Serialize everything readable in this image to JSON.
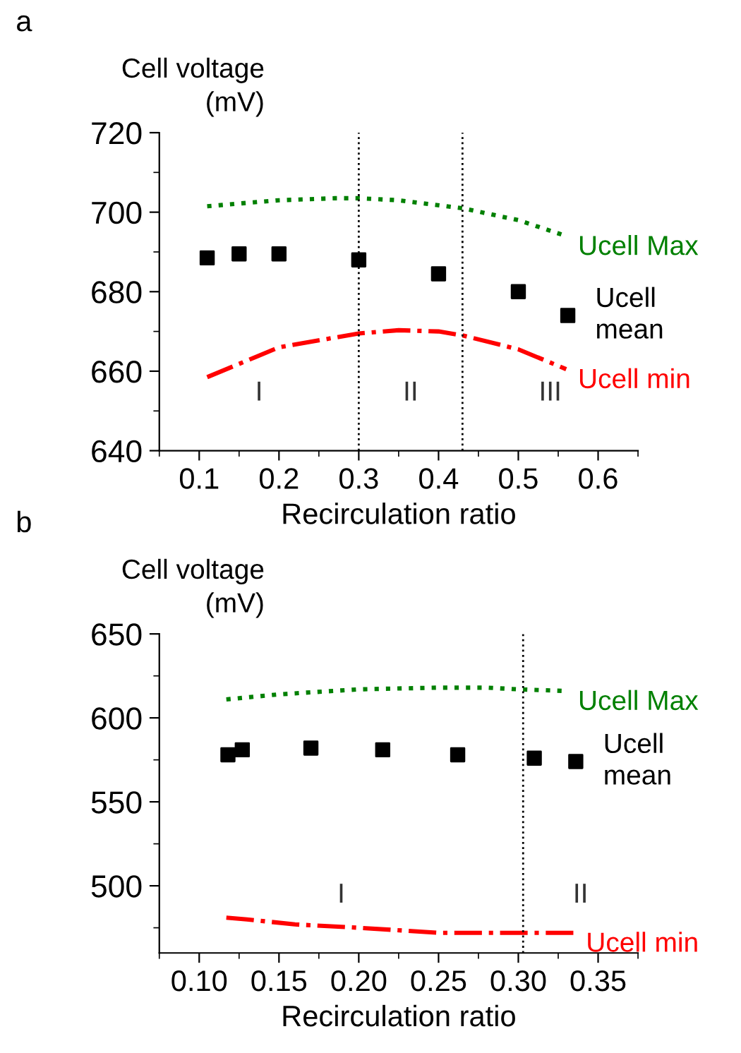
{
  "chart_data": [
    {
      "type": "line",
      "xlabel": "Recirculation ratio",
      "ylabel": "Cell voltage\n(mV)",
      "xlim": [
        0.05,
        0.65
      ],
      "xticks": [
        0.1,
        0.2,
        0.3,
        0.4,
        0.5,
        0.6
      ],
      "ylim": [
        640,
        720
      ],
      "yticks": [
        640,
        660,
        680,
        700,
        720
      ],
      "grid": false,
      "legend": false,
      "series": [
        {
          "name": "Ucell Max",
          "type": "line",
          "color": "#008000",
          "line_style": "dotted",
          "x": [
            0.11,
            0.2,
            0.27,
            0.3,
            0.35,
            0.43,
            0.5,
            0.56
          ],
          "values": [
            701.5,
            703,
            703.5,
            703.5,
            703,
            701,
            698,
            694
          ]
        },
        {
          "name": "Ucell mean",
          "type": "scatter",
          "color": "#000000",
          "marker": "square",
          "x": [
            0.11,
            0.15,
            0.2,
            0.3,
            0.4,
            0.5,
            0.562
          ],
          "values": [
            688.5,
            689.5,
            689.5,
            688,
            684.5,
            680,
            674
          ]
        },
        {
          "name": "Ucell min",
          "type": "line",
          "color": "#ff0000",
          "line_style": "dashdot",
          "x": [
            0.11,
            0.2,
            0.3,
            0.35,
            0.4,
            0.43,
            0.5,
            0.56
          ],
          "values": [
            658.5,
            666,
            669.5,
            670.3,
            670,
            669,
            665.5,
            660.5
          ]
        }
      ],
      "ref_lines": [
        {
          "axis": "x",
          "value": 0.3,
          "color": "#000000",
          "line_style": "dotted"
        },
        {
          "axis": "x",
          "value": 0.43,
          "color": "#000000",
          "line_style": "dotted"
        }
      ],
      "annotations": [
        "a",
        "I",
        "II",
        "III"
      ]
    },
    {
      "type": "line",
      "xlabel": "Recirculation ratio",
      "ylabel": "Cell voltage\n(mV)",
      "xlim": [
        0.075,
        0.375
      ],
      "xticks": [
        {
          "value": 0.1,
          "label": "0.10"
        },
        {
          "value": 0.15,
          "label": "0.15"
        },
        {
          "value": 0.2,
          "label": "0.20"
        },
        {
          "value": 0.25,
          "label": "0.25"
        },
        {
          "value": 0.3,
          "label": "0.30"
        },
        {
          "value": 0.35,
          "label": "0.35"
        }
      ],
      "ylim": [
        460,
        650
      ],
      "yticks": [
        500,
        550,
        600,
        650
      ],
      "grid": false,
      "legend": false,
      "series": [
        {
          "name": "Ucell Max",
          "type": "line",
          "color": "#008000",
          "line_style": "dotted",
          "x": [
            0.117,
            0.15,
            0.2,
            0.25,
            0.28,
            0.3,
            0.33
          ],
          "values": [
            611,
            614,
            617,
            618,
            618,
            617,
            616
          ]
        },
        {
          "name": "Ucell mean",
          "type": "scatter",
          "color": "#000000",
          "marker": "square",
          "x": [
            0.118,
            0.127,
            0.17,
            0.215,
            0.262,
            0.31,
            0.336
          ],
          "values": [
            578,
            581,
            582,
            581,
            578,
            576,
            574
          ]
        },
        {
          "name": "Ucell min",
          "type": "line",
          "color": "#ff0000",
          "line_style": "dashdot",
          "x": [
            0.117,
            0.13,
            0.16,
            0.2,
            0.25,
            0.3,
            0.335
          ],
          "values": [
            481,
            480,
            477,
            475,
            472,
            472,
            472
          ]
        }
      ],
      "ref_lines": [
        {
          "axis": "x",
          "value": 0.303,
          "color": "#000000",
          "line_style": "dotted"
        }
      ],
      "annotations": [
        "b",
        "I",
        "II"
      ]
    }
  ]
}
